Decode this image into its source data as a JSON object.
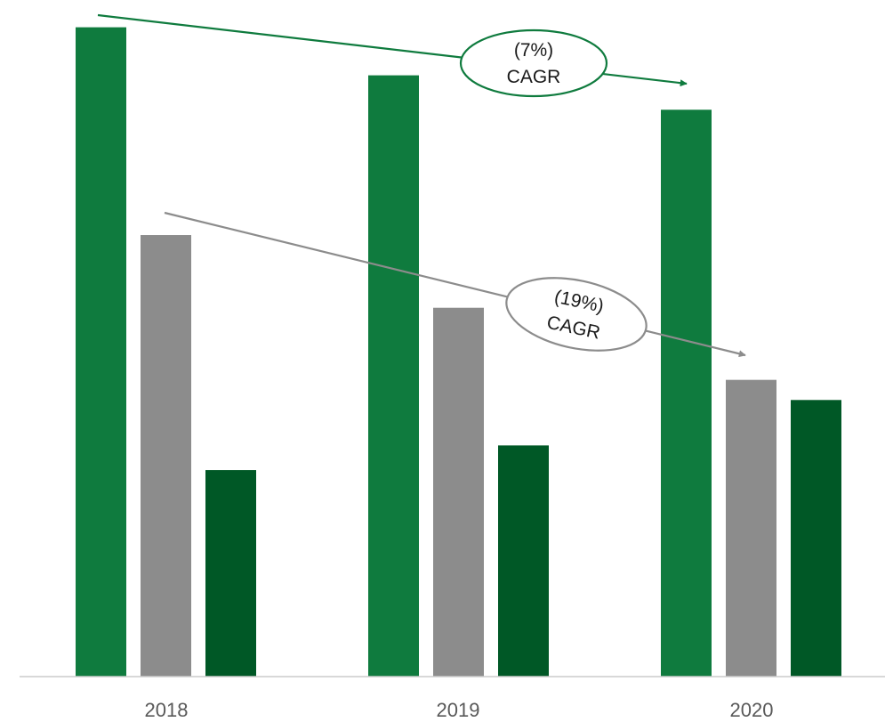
{
  "colors": {
    "series_a": "#0f7b3e",
    "series_b": "#8c8c8c",
    "series_c": "#005826",
    "axis": "#cccccc",
    "anno_green": "#0f7b3e",
    "anno_gray": "#8c8c8c"
  },
  "chart_data": {
    "type": "bar",
    "categories": [
      "2018",
      "2019",
      "2020"
    ],
    "series": [
      {
        "values": [
          100,
          92.6,
          87.3
        ]
      },
      {
        "values": [
          68.0,
          56.8,
          45.7
        ]
      },
      {
        "values": [
          31.8,
          35.6,
          42.6
        ]
      }
    ],
    "ylim": [
      0,
      104.2
    ],
    "grid": false,
    "legend": "none",
    "annotations": [
      {
        "line1": "(7%)",
        "line2": "CAGR",
        "color": "green"
      },
      {
        "line1": "(19%)",
        "line2": "CAGR",
        "color": "gray"
      }
    ]
  }
}
